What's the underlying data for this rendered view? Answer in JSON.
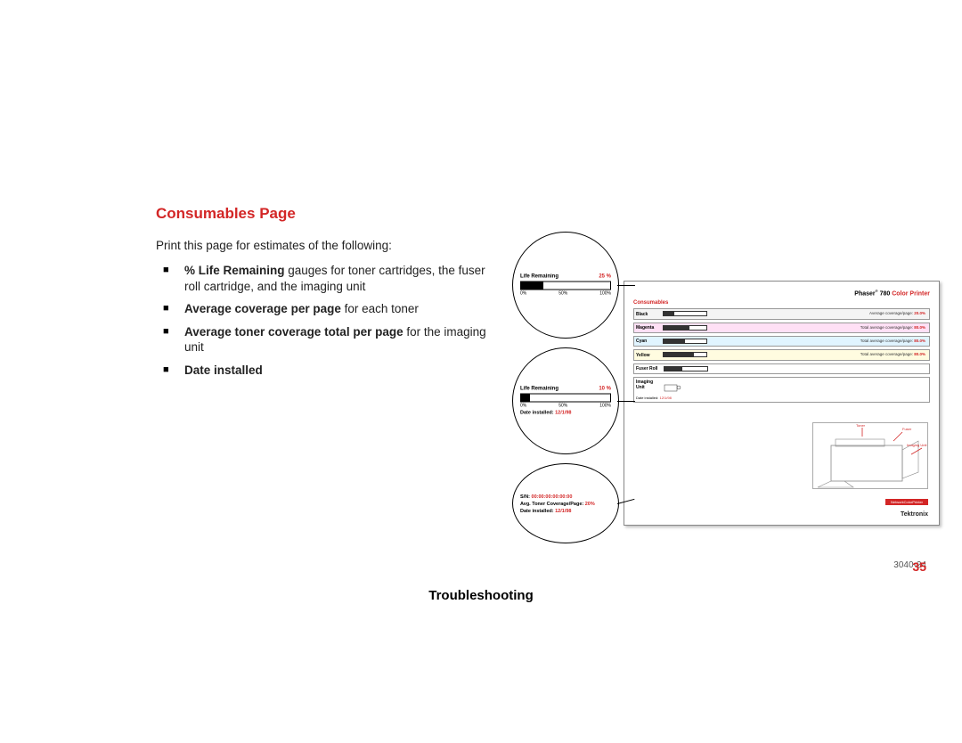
{
  "heading": "Consumables Page",
  "intro": "Print this page for estimates of the following:",
  "bullets": [
    {
      "bold": "% Life Remaining",
      "rest": " gauges for toner cartridges, the fuser roll cartridge, and the imaging unit"
    },
    {
      "bold": "Average coverage per page",
      "rest": " for each toner"
    },
    {
      "bold": "Average toner coverage total per page",
      "rest": " for the imaging unit"
    },
    {
      "bold": "Date installed",
      "rest": ""
    }
  ],
  "printout": {
    "title_pre": "Phaser",
    "title_num": "780",
    "title_post": "Color Printer",
    "label": "Consumables",
    "toners": [
      {
        "name": "Black",
        "cls": "sec-black",
        "coverage_label": "Average coverage/page:",
        "coverage_val": "20.0%",
        "fill_pct": 25
      },
      {
        "name": "Magenta",
        "cls": "sec-magenta",
        "coverage_label": "Total average coverage/page:",
        "coverage_val": "80.0%",
        "fill_pct": 60
      },
      {
        "name": "Cyan",
        "cls": "sec-cyan",
        "coverage_label": "Total average coverage/page:",
        "coverage_val": "80.0%",
        "fill_pct": 50
      },
      {
        "name": "Yellow",
        "cls": "sec-yellow",
        "coverage_label": "Total average coverage/page:",
        "coverage_val": "80.0%",
        "fill_pct": 70
      }
    ],
    "fuser": {
      "name": "Fuser Roll",
      "fill_pct": 40
    },
    "imaging": {
      "name": "Imaging Unit",
      "date_label": "Date installed:",
      "date_val": "12/1/98"
    },
    "brand": "Tektronix",
    "badge": "NetworkColorPrinter",
    "illus": {
      "toner_label": "Toner",
      "fuser_label": "Fuser",
      "imaging_label": "Imaging Unit",
      "toner_color": "#d32626"
    }
  },
  "callouts": {
    "c1": {
      "label": "Life Remaining",
      "pct": "25 %",
      "ticks": [
        "0%",
        "50%",
        "100%"
      ],
      "fill_pct": 25
    },
    "c2": {
      "label": "Life Remaining",
      "pct": "10 %",
      "ticks": [
        "0%",
        "50%",
        "100%"
      ],
      "fill_pct": 10,
      "date_label": "Date installed:",
      "date_val": "12/1/98"
    },
    "c3": {
      "lines": [
        {
          "k": "S/N:",
          "v": "00:00:00:00:00:00"
        },
        {
          "k": "Avg. Toner Coverage/Page:",
          "v": "20%"
        },
        {
          "k": "Date installed:",
          "v": "12/1/98"
        }
      ]
    }
  },
  "figno": "3040-24",
  "pagenum": "35",
  "footer": "Troubleshooting",
  "colors": {
    "heading": "#d32626",
    "text": "#222222",
    "page_bg": "#ffffff"
  }
}
